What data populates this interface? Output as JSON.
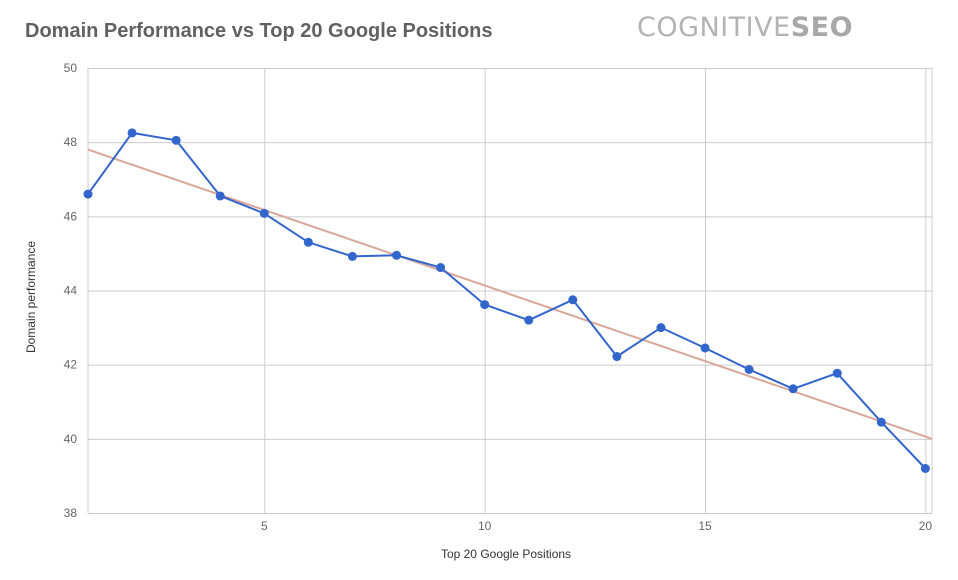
{
  "header": {
    "logo_text_regular": "COGNITIVE",
    "logo_text_bold": "SEO"
  },
  "colors": {
    "series": "#3366cc",
    "trendline": "#d9a79a",
    "grid": "#cccccc",
    "axis_text": "#666666",
    "title_text": "#616161"
  },
  "chart_data": {
    "type": "line",
    "title": "Domain Performance vs Top 20 Google Positions",
    "xlabel": "Top 20 Google Positions",
    "ylabel": "Domain performance",
    "xlim": [
      1,
      20.15
    ],
    "ylim": [
      38,
      50
    ],
    "x_ticks": [
      5,
      10,
      15,
      20
    ],
    "y_ticks": [
      38,
      40,
      42,
      44,
      46,
      48,
      50
    ],
    "grid": true,
    "legend": "none",
    "series": [
      {
        "x": [
          1,
          2,
          3,
          4,
          5,
          6,
          7,
          8,
          9,
          10,
          11,
          12,
          13,
          14,
          15,
          16,
          17,
          18,
          19,
          20
        ],
        "values": [
          46.6,
          48.25,
          48.05,
          46.55,
          46.08,
          45.3,
          44.92,
          44.95,
          44.62,
          43.62,
          43.2,
          43.75,
          42.22,
          43.0,
          42.45,
          41.87,
          41.35,
          41.77,
          40.45,
          39.2
        ]
      }
    ],
    "trendline": {
      "type": "linear",
      "start": [
        1,
        47.8
      ],
      "end": [
        20.15,
        40.0
      ]
    }
  }
}
